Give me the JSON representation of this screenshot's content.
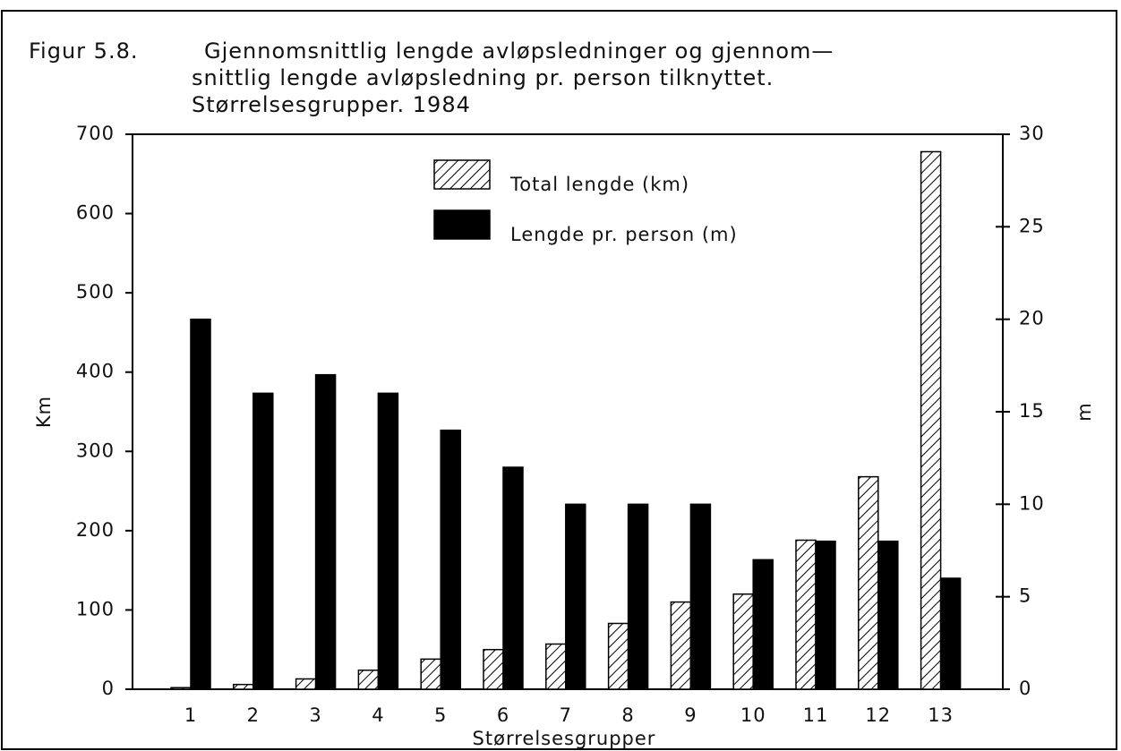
{
  "chart_data": {
    "type": "bar",
    "title": [
      "Figur 5.8.",
      "Gjennomsnittlig lengde avløpsledninger og gjennom—",
      "snittlig lengde avløpsledning pr. person tilknyttet.",
      "Størrelsesgrupper. 1984"
    ],
    "x_label": "Størrelsesgrupper",
    "y_label": "Km",
    "y2_label": "m",
    "categories": [
      "1",
      "2",
      "3",
      "4",
      "5",
      "6",
      "7",
      "8",
      "9",
      "10",
      "11",
      "12",
      "13"
    ],
    "series": [
      {
        "name": "Total lengde (km)",
        "color": "#000000",
        "fill": "hatch",
        "values": [
          2,
          6,
          13,
          24,
          38,
          50,
          57,
          83,
          110,
          120,
          188,
          268,
          678
        ]
      },
      {
        "name": "Lengde pr. person (m)",
        "color": "#000000",
        "fill": "solid",
        "axis": "y2",
        "values": [
          20,
          16,
          17,
          16,
          14,
          12,
          10,
          10,
          10,
          7,
          8,
          8,
          6
        ]
      }
    ],
    "ylim": [
      0,
      700
    ],
    "yticks": [
      0,
      100,
      200,
      300,
      400,
      500,
      600,
      700
    ],
    "y2lim": [
      0,
      30
    ],
    "y2ticks": [
      0,
      5,
      10,
      15,
      20,
      25,
      30
    ]
  }
}
